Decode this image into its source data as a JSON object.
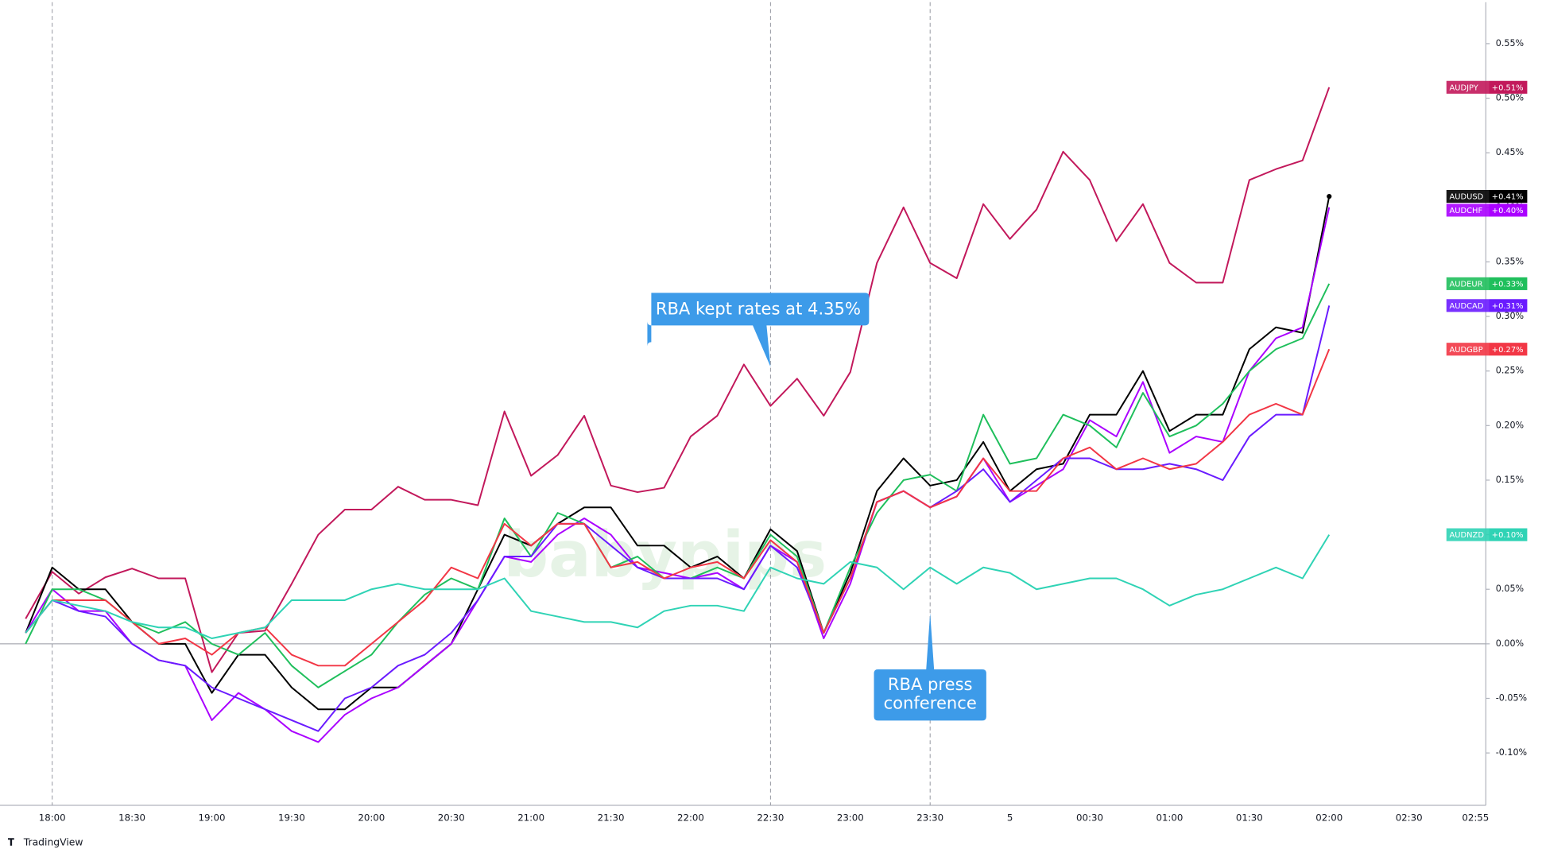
{
  "chart_data": {
    "type": "line",
    "categories": [
      null,
      "18:00",
      null,
      null,
      "18:30",
      null,
      null,
      "19:00",
      null,
      null,
      "19:30",
      null,
      null,
      "20:00",
      null,
      null,
      "20:30",
      null,
      null,
      "21:00",
      null,
      null,
      "21:30",
      null,
      null,
      "22:00",
      null,
      null,
      "22:30",
      null,
      null,
      "23:00",
      null,
      null,
      "23:30",
      null,
      null,
      "5",
      null,
      null,
      "00:30",
      null,
      null,
      "01:00",
      null,
      null,
      "01:30",
      null,
      null,
      "02:00",
      null,
      null,
      "02:30",
      null,
      null
    ],
    "x_end_label": "02:55",
    "ylim": [
      -0.148,
      0.588
    ],
    "yticks": [
      {
        "value": -0.1,
        "label": "-0.10%"
      },
      {
        "value": -0.05,
        "label": "-0.05%"
      },
      {
        "value": 0,
        "label": "0.00%"
      },
      {
        "value": 0.05,
        "label": "0.05%"
      },
      {
        "value": 0.1,
        "label": "0.10%"
      },
      {
        "value": 0.15,
        "label": "0.15%"
      },
      {
        "value": 0.2,
        "label": "0.20%"
      },
      {
        "value": 0.25,
        "label": "0.25%"
      },
      {
        "value": 0.3,
        "label": "0.30%"
      },
      {
        "value": 0.35,
        "label": "0.35%"
      },
      {
        "value": 0.4,
        "label": "0.40%"
      },
      {
        "value": 0.45,
        "label": "0.45%"
      },
      {
        "value": 0.5,
        "label": "0.50%"
      },
      {
        "value": 0.55,
        "label": "0.55%"
      }
    ],
    "zero_line": 0,
    "session_breaks": [
      "18:00"
    ],
    "series": [
      {
        "name": "AUDJPY",
        "color": "#c2185b",
        "end_label": "+0.51%",
        "values": [
          0.023,
          0.066,
          0.046,
          0.061,
          0.069,
          0.06,
          0.06,
          -0.026,
          0.01,
          0.012,
          0.055,
          0.1,
          0.123,
          0.123,
          0.144,
          0.132,
          0.132,
          0.127,
          0.213,
          0.154,
          0.173,
          0.209,
          0.145,
          0.139,
          0.143,
          0.19,
          0.209,
          0.256,
          0.218,
          0.243,
          0.209,
          0.249,
          0.349,
          0.4,
          0.349,
          0.335,
          0.403,
          0.371,
          0.398,
          0.451,
          0.425,
          0.369,
          0.403,
          0.349,
          0.331,
          0.331,
          0.425,
          0.435,
          0.443,
          0.51,
          null,
          null,
          null,
          null,
          null
        ]
      },
      {
        "name": "AUDUSD",
        "color": "#000000",
        "end_label": "+0.41%",
        "values": [
          0.01,
          0.07,
          0.05,
          0.05,
          0.02,
          0.0,
          0.0,
          -0.045,
          -0.01,
          -0.01,
          -0.04,
          -0.06,
          -0.06,
          -0.04,
          -0.04,
          -0.02,
          0.0,
          0.05,
          0.1,
          0.09,
          0.11,
          0.125,
          0.125,
          0.09,
          0.09,
          0.07,
          0.08,
          0.06,
          0.105,
          0.085,
          0.01,
          0.065,
          0.14,
          0.17,
          0.145,
          0.15,
          0.185,
          0.14,
          0.16,
          0.165,
          0.21,
          0.21,
          0.25,
          0.195,
          0.21,
          0.21,
          0.27,
          0.29,
          0.285,
          0.41,
          null,
          null,
          null,
          null,
          null
        ]
      },
      {
        "name": "AUDCHF",
        "color": "#aa00ff",
        "end_label": "+0.40%",
        "values": [
          0.01,
          0.05,
          0.03,
          0.03,
          0.0,
          -0.015,
          -0.02,
          -0.07,
          -0.045,
          -0.06,
          -0.08,
          -0.09,
          -0.065,
          -0.05,
          -0.04,
          -0.02,
          0.0,
          0.04,
          0.08,
          0.075,
          0.1,
          0.115,
          0.1,
          0.07,
          0.065,
          0.06,
          0.065,
          0.05,
          0.09,
          0.075,
          0.005,
          0.055,
          0.13,
          0.14,
          0.125,
          0.135,
          0.17,
          0.13,
          0.145,
          0.16,
          0.205,
          0.19,
          0.24,
          0.175,
          0.19,
          0.185,
          0.25,
          0.28,
          0.29,
          0.4,
          null,
          null,
          null,
          null,
          null
        ]
      },
      {
        "name": "AUDEUR",
        "color": "#1fbf5c",
        "end_label": "+0.33%",
        "values": [
          0.0,
          0.05,
          0.05,
          0.04,
          0.02,
          0.01,
          0.02,
          0.0,
          -0.01,
          0.01,
          -0.02,
          -0.04,
          -0.025,
          -0.01,
          0.02,
          0.045,
          0.06,
          0.05,
          0.115,
          0.08,
          0.12,
          0.11,
          0.07,
          0.08,
          0.06,
          0.06,
          0.07,
          0.06,
          0.1,
          0.08,
          0.01,
          0.07,
          0.12,
          0.15,
          0.155,
          0.14,
          0.21,
          0.165,
          0.17,
          0.21,
          0.2,
          0.18,
          0.23,
          0.19,
          0.2,
          0.22,
          0.25,
          0.27,
          0.28,
          0.33,
          null,
          null,
          null,
          null,
          null
        ]
      },
      {
        "name": "AUDCAD",
        "color": "#6a1bff",
        "end_label": "+0.31%",
        "values": [
          0.01,
          0.04,
          0.03,
          0.025,
          0.0,
          -0.015,
          -0.02,
          -0.04,
          -0.05,
          -0.06,
          -0.07,
          -0.08,
          -0.05,
          -0.04,
          -0.02,
          -0.01,
          0.01,
          0.04,
          0.08,
          0.08,
          0.11,
          0.11,
          0.09,
          0.07,
          0.06,
          0.06,
          0.06,
          0.05,
          0.09,
          0.07,
          0.01,
          0.06,
          0.13,
          0.14,
          0.125,
          0.14,
          0.16,
          0.13,
          0.15,
          0.17,
          0.17,
          0.16,
          0.16,
          0.165,
          0.16,
          0.15,
          0.19,
          0.21,
          0.21,
          0.31,
          null,
          null,
          null,
          null,
          null
        ]
      },
      {
        "name": "AUDGBP",
        "color": "#f23645",
        "end_label": "+0.27%",
        "values": [
          0.01,
          0.04,
          0.04,
          0.04,
          0.02,
          0.0,
          0.005,
          -0.01,
          0.01,
          0.015,
          -0.01,
          -0.02,
          -0.02,
          0.0,
          0.02,
          0.04,
          0.07,
          0.06,
          0.11,
          0.09,
          0.11,
          0.11,
          0.07,
          0.075,
          0.06,
          0.07,
          0.075,
          0.06,
          0.095,
          0.075,
          0.01,
          0.06,
          0.13,
          0.14,
          0.125,
          0.135,
          0.17,
          0.14,
          0.14,
          0.17,
          0.18,
          0.16,
          0.17,
          0.16,
          0.165,
          0.185,
          0.21,
          0.22,
          0.21,
          0.27,
          null,
          null,
          null,
          null,
          null
        ]
      },
      {
        "name": "AUDNZD",
        "color": "#2fd3b5",
        "end_label": "+0.10%",
        "values": [
          0.01,
          0.04,
          0.035,
          0.03,
          0.02,
          0.015,
          0.015,
          0.005,
          0.01,
          0.015,
          0.04,
          0.04,
          0.04,
          0.05,
          0.055,
          0.05,
          0.05,
          0.05,
          0.06,
          0.03,
          0.025,
          0.02,
          0.02,
          0.015,
          0.03,
          0.035,
          0.035,
          0.03,
          0.07,
          0.06,
          0.055,
          0.075,
          0.07,
          0.05,
          0.07,
          0.055,
          0.07,
          0.065,
          0.05,
          0.055,
          0.06,
          0.06,
          0.05,
          0.035,
          0.045,
          0.05,
          0.06,
          0.07,
          0.06,
          0.1,
          null,
          null,
          null,
          null,
          null
        ]
      }
    ],
    "annotations": [
      {
        "text": [
          "RBA kept rates at 4.35%"
        ],
        "x": "22:30",
        "place": "above"
      },
      {
        "text": [
          "RBA press",
          "conference"
        ],
        "x": "23:30",
        "place": "below"
      }
    ],
    "watermark": "babypips",
    "footer": "TradingView"
  }
}
